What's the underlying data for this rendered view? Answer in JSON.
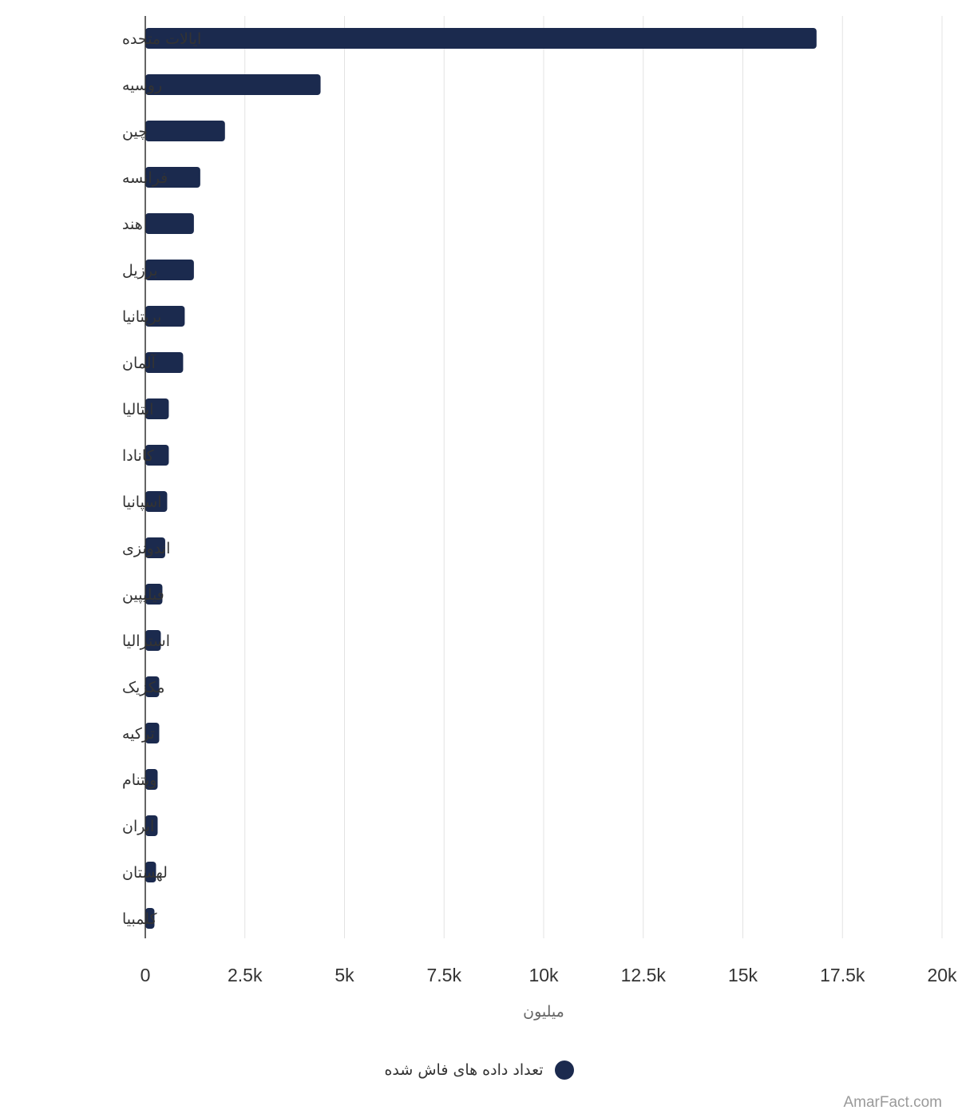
{
  "chart_data": {
    "type": "bar",
    "orientation": "horizontal",
    "categories": [
      "ایالات متحده",
      "روسیه",
      "چین",
      "فرانسه",
      "هند",
      "برزیل",
      "بریتانیا",
      "آلمان",
      "ایتالیا",
      "کانادا",
      "اسپانیا",
      "اندونزی",
      "فیلیپین",
      "استرالیا",
      "مکزیک",
      "ترکیه",
      "ویتنام",
      "ایران",
      "لهستان",
      "کلمبیا"
    ],
    "series": [
      {
        "name": "تعداد داده های فاش شده",
        "values": [
          16850,
          4400,
          2000,
          1380,
          1220,
          1220,
          990,
          950,
          590,
          590,
          550,
          500,
          430,
          390,
          350,
          350,
          310,
          310,
          270,
          230
        ]
      }
    ],
    "xlim": [
      0,
      20000
    ],
    "xticks": [
      0,
      2500,
      5000,
      7500,
      10000,
      12500,
      15000,
      17500,
      20000
    ],
    "xtick_labels": [
      "0",
      "2.5k",
      "5k",
      "7.5k",
      "10k",
      "12.5k",
      "15k",
      "17.5k",
      "20k"
    ],
    "xlabel": "میلیون",
    "grid": true,
    "legend_position": "bottom-center",
    "bar_color": "#1b2a4e"
  },
  "legend": {
    "label": "تعداد داده های فاش شده",
    "color": "#1b2a4e"
  },
  "watermark": "AmarFact.com"
}
